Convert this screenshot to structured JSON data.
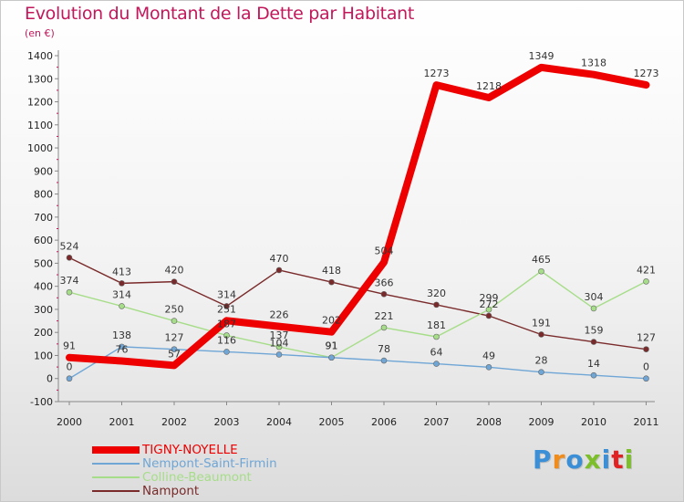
{
  "title": "Evolution du Montant de la Dette par Habitant",
  "unit": "(en €)",
  "logo": "Proxiti",
  "colors": {
    "title": "#c2185b",
    "logo": [
      "#3a8fd6",
      "#f08c1c",
      "#3a8fd6",
      "#7cbf2a",
      "#3a8fd6",
      "#e02222",
      "#7cbf2a"
    ]
  },
  "chart_data": {
    "type": "line",
    "title": "Evolution du Montant de la Dette par Habitant",
    "ylabel": "(en €)",
    "xlabel": "",
    "ylim": [
      -100,
      1400
    ],
    "yticks": [
      -100,
      0,
      100,
      200,
      300,
      400,
      500,
      600,
      700,
      800,
      900,
      1000,
      1100,
      1200,
      1300,
      1400
    ],
    "grid": false,
    "legend_position": "bottom-left",
    "x": [
      "2000",
      "2001",
      "2002",
      "2003",
      "2004",
      "2005",
      "2006",
      "2007",
      "2008",
      "2009",
      "2010",
      "2011"
    ],
    "series": [
      {
        "name": "TIGNY-NOYELLE",
        "color": "#ee0000",
        "values": [
          91,
          76,
          57,
          251,
          226,
          202,
          504,
          1273,
          1218,
          1349,
          1318,
          1273
        ]
      },
      {
        "name": "Nempont-Saint-Firmin",
        "color": "#6fa6d6",
        "values": [
          0,
          138,
          127,
          116,
          104,
          91,
          78,
          64,
          49,
          28,
          14,
          0
        ]
      },
      {
        "name": "Colline-Beaumont",
        "color": "#a6dd88",
        "values": [
          374,
          314,
          250,
          187,
          137,
          91,
          221,
          181,
          299,
          465,
          304,
          421
        ]
      },
      {
        "name": "Nampont",
        "color": "#7a2a2a",
        "values": [
          524,
          413,
          420,
          314,
          470,
          418,
          366,
          320,
          272,
          191,
          159,
          127
        ]
      }
    ]
  }
}
